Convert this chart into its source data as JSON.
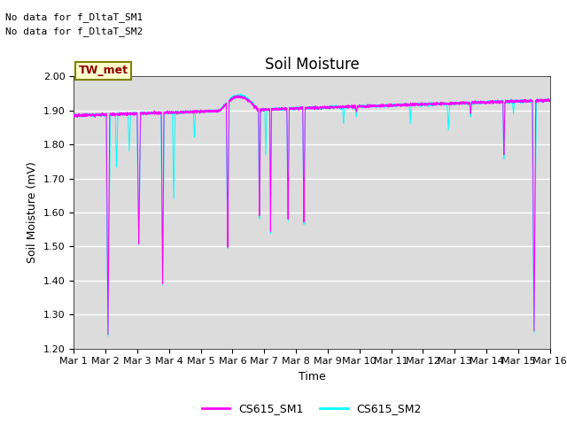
{
  "title": "Soil Moisture",
  "xlabel": "Time",
  "ylabel": "Soil Moisture (mV)",
  "ylim": [
    1.2,
    2.0
  ],
  "xlim": [
    0,
    15
  ],
  "xtick_labels": [
    "Mar 1",
    "Mar 2",
    "Mar 3",
    "Mar 4",
    "Mar 5",
    "Mar 6",
    "Mar 7",
    "Mar 8",
    "Mar 9",
    "Mar 10",
    "Mar 11",
    "Mar 12",
    "Mar 13",
    "Mar 14",
    "Mar 15",
    "Mar 16"
  ],
  "color_sm1": "#FF00FF",
  "color_sm2": "#00FFFF",
  "legend_label_sm1": "CS615_SM1",
  "legend_label_sm2": "CS615_SM2",
  "tw_met_label": "TW_met",
  "no_data_text1": "No data for f_DltaT_SM1",
  "no_data_text2": "No data for f_DltaT_SM2",
  "bg_color": "#DCDCDC",
  "title_fontsize": 12,
  "axis_label_fontsize": 9,
  "tick_fontsize": 8
}
